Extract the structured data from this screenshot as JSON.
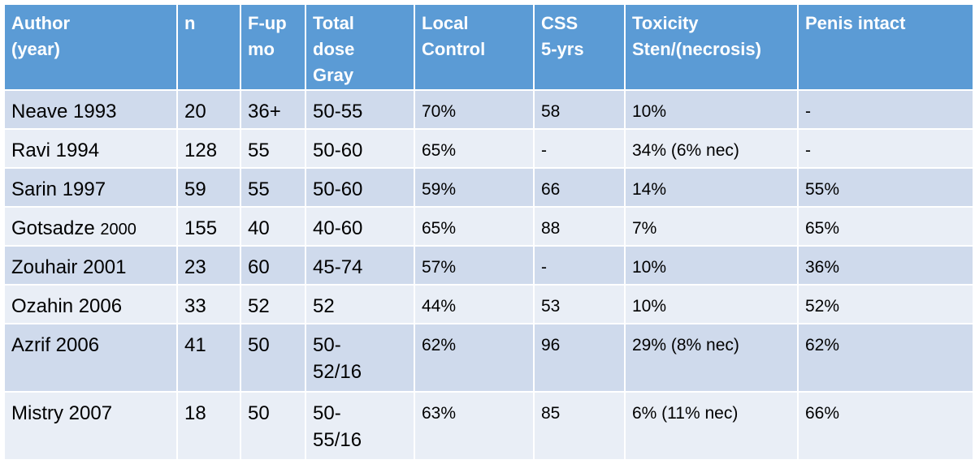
{
  "table": {
    "headers": [
      "Author\n(year)",
      "n",
      "F-up\nmo",
      "Total\ndose\nGray",
      "Local\nControl",
      "CSS\n5-yrs",
      "Toxicity\nSten/(necrosis)",
      "Penis intact"
    ],
    "rows": [
      {
        "author": "Neave 1993",
        "author_suffix": "",
        "n": "20",
        "fup": "36+",
        "dose": "50-55",
        "local_control": "70%",
        "css": "58",
        "toxicity": "10%",
        "penis": "-"
      },
      {
        "author": "Ravi 1994",
        "author_suffix": "",
        "n": "128",
        "fup": "55",
        "dose": "50-60",
        "local_control": "65%",
        "css": "-",
        "toxicity": "34% (6% nec)",
        "penis": "-"
      },
      {
        "author": "Sarin 1997",
        "author_suffix": "",
        "n": "59",
        "fup": "55",
        "dose": "50-60",
        "local_control": "59%",
        "css": "66",
        "toxicity": "14%",
        "penis": "55%"
      },
      {
        "author": "Gotsadze ",
        "author_suffix": "2000",
        "n": "155",
        "fup": "40",
        "dose": "40-60",
        "local_control": "65%",
        "css": "88",
        "toxicity": "7%",
        "penis": "65%"
      },
      {
        "author": "Zouhair 2001",
        "author_suffix": "",
        "n": "23",
        "fup": "60",
        "dose": "45-74",
        "local_control": "57%",
        "css": "-",
        "toxicity": "10%",
        "penis": "36%"
      },
      {
        "author": "Ozahin 2006",
        "author_suffix": "",
        "n": "33",
        "fup": "52",
        "dose": "52",
        "local_control": "44%",
        "css": "53",
        "toxicity": "10%",
        "penis": "52%"
      },
      {
        "author": "Azrif 2006",
        "author_suffix": "",
        "n": "41",
        "fup": "50",
        "dose": "50-\n52/16",
        "local_control": "62%",
        "css": "96",
        "toxicity": "29% (8% nec)",
        "penis": "62%"
      },
      {
        "author": "Mistry 2007",
        "author_suffix": "",
        "n": "18",
        "fup": "50",
        "dose": "50-\n55/16",
        "local_control": "63%",
        "css": "85",
        "toxicity": "6% (11% nec)",
        "penis": "66%"
      }
    ]
  },
  "colors": {
    "header_bg": "#5b9bd5",
    "row_odd_bg": "#cfdaec",
    "row_even_bg": "#e9eef6"
  }
}
